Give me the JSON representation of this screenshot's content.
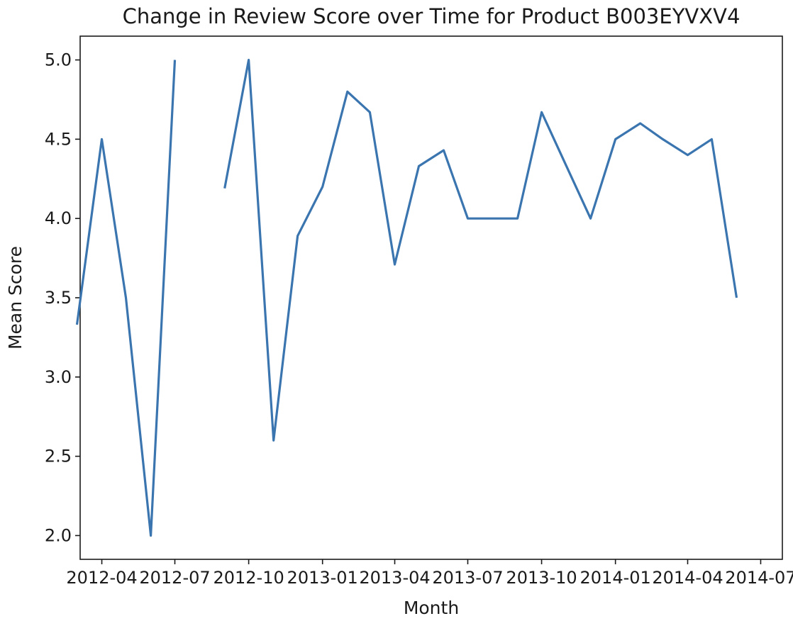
{
  "chart_data": {
    "type": "line",
    "title": "Change in Review Score over Time for Product B003EYVXV4",
    "xlabel": "Month",
    "ylabel": "Mean Score",
    "ylim": [
      1.85,
      5.15
    ],
    "xlim": [
      "2012-03-05",
      "2014-07-28"
    ],
    "grid": false,
    "legend": "none",
    "series_color": "#3b75af",
    "x_ticks": [
      "2012-04",
      "2012-07",
      "2012-10",
      "2013-01",
      "2013-04",
      "2013-07",
      "2013-10",
      "2014-01",
      "2014-04",
      "2014-07"
    ],
    "y_ticks": [
      "2.0",
      "2.5",
      "3.0",
      "3.5",
      "4.0",
      "4.5",
      "5.0"
    ],
    "series": [
      {
        "x": [
          "2012-03",
          "2012-04",
          "2012-05",
          "2012-06",
          "2012-07",
          "2012-08",
          "2012-09",
          "2012-10",
          "2012-11",
          "2012-12",
          "2013-01",
          "2013-02",
          "2013-03",
          "2013-04",
          "2013-05",
          "2013-06",
          "2013-07",
          "2013-08",
          "2013-09",
          "2013-10",
          "2013-11",
          "2013-12",
          "2014-01",
          "2014-02",
          "2014-03",
          "2014-04",
          "2014-05",
          "2014-06",
          "2014-07"
        ],
        "values": [
          3.33,
          4.5,
          3.5,
          2.0,
          5.0,
          null,
          4.19,
          5.0,
          2.6,
          3.89,
          4.2,
          4.8,
          4.67,
          3.71,
          4.33,
          4.43,
          4.0,
          4.0,
          4.0,
          4.67,
          4.33,
          4.0,
          4.5,
          4.6,
          4.5,
          4.4,
          4.5,
          3.5,
          null
        ]
      }
    ]
  }
}
